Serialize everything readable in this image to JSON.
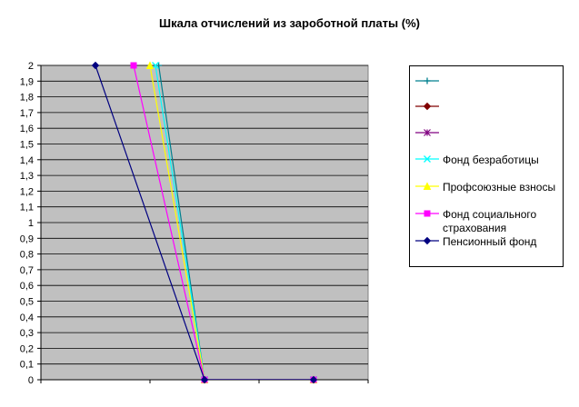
{
  "chart_data": {
    "type": "line",
    "title": "Шкала отчислений из зароботной платы (%)",
    "y_ticks": [
      "0",
      "0,1",
      "0,2",
      "0,3",
      "0,4",
      "0,5",
      "0,6",
      "0,7",
      "0,8",
      "0,9",
      "1",
      "1,1",
      "1,2",
      "1,3",
      "1,4",
      "1,5",
      "1,6",
      "1,7",
      "1,8",
      "1,9",
      "2"
    ],
    "ylim": [
      0,
      2
    ],
    "xlim": [
      0,
      3
    ],
    "grid": true,
    "legend_position": "right",
    "series": [
      {
        "name": "",
        "color": "#00808f",
        "marker": "plus",
        "points": [
          [
            1.08,
            2.0
          ],
          [
            1.5,
            0.0
          ],
          [
            2.5,
            0.0
          ]
        ]
      },
      {
        "name": "",
        "color": "#800000",
        "marker": "diamond",
        "points": [
          [
            1.5,
            0.0
          ],
          [
            2.5,
            0.0
          ]
        ]
      },
      {
        "name": "",
        "color": "#800080",
        "marker": "star",
        "points": [
          [
            1.5,
            0.0
          ],
          [
            2.5,
            0.0
          ]
        ]
      },
      {
        "name": "Фонд безработицы",
        "color": "#00ffff",
        "marker": "x",
        "points": [
          [
            1.05,
            2.0
          ],
          [
            1.5,
            0.0
          ],
          [
            2.5,
            0.0
          ]
        ]
      },
      {
        "name": "Профсоюзные взносы",
        "color": "#ffff00",
        "marker": "triangle",
        "points": [
          [
            1.0,
            2.0
          ],
          [
            1.5,
            0.0
          ],
          [
            2.5,
            0.0
          ]
        ]
      },
      {
        "name": "Фонд социального страхования",
        "color": "#ff00ff",
        "marker": "square",
        "points": [
          [
            0.85,
            2.0
          ],
          [
            1.5,
            0.0
          ],
          [
            2.5,
            0.0
          ]
        ]
      },
      {
        "name": "Пенсионный фонд",
        "color": "#000080",
        "marker": "diamond",
        "points": [
          [
            0.5,
            2.0
          ],
          [
            1.5,
            0.0
          ],
          [
            2.5,
            0.0
          ]
        ]
      }
    ],
    "legend": [
      {
        "label": "",
        "color": "#00808f",
        "marker": "plus"
      },
      {
        "label": "",
        "color": "#800000",
        "marker": "diamond"
      },
      {
        "label": "",
        "color": "#800080",
        "marker": "star"
      },
      {
        "label": "Фонд безработицы",
        "color": "#00ffff",
        "marker": "x"
      },
      {
        "label": "Профсоюзные взносы",
        "color": "#ffff00",
        "marker": "triangle"
      },
      {
        "label": "Фонд социального страхования",
        "color": "#ff00ff",
        "marker": "square"
      },
      {
        "label": "Пенсионный фонд",
        "color": "#000080",
        "marker": "diamond"
      }
    ]
  }
}
